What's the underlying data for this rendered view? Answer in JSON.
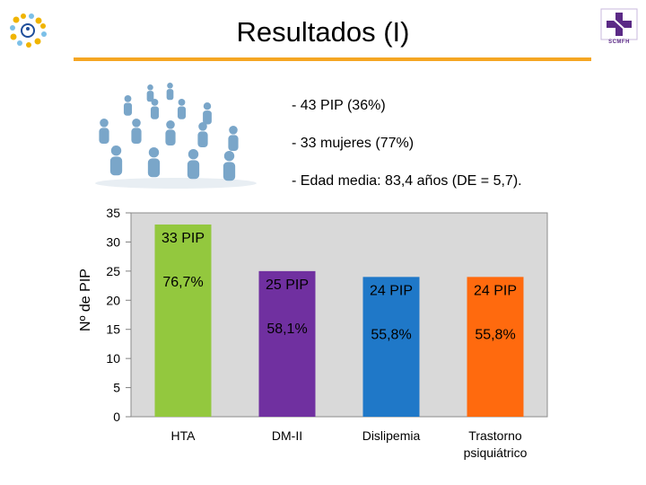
{
  "slide": {
    "title": "Resultados (I)",
    "bullets": [
      "- 43 PIP (36%)",
      "- 33 mujeres (77%)",
      "- Edad media: 83,4 años (DE = 5,7)."
    ],
    "logo_right_text": "SCMFH",
    "colors": {
      "title_rule": "#f5a623",
      "plot_bg": "#d9d9d9"
    }
  },
  "chart_data": {
    "type": "bar",
    "title": "",
    "xlabel": "",
    "ylabel": "Nº de PIP",
    "ylim": [
      0,
      35
    ],
    "yticks": [
      0,
      5,
      10,
      15,
      20,
      25,
      30,
      35
    ],
    "grid": false,
    "categories": [
      "HTA",
      "DM-II",
      "Dislipemia",
      "Trastorno psiquiátrico"
    ],
    "category_lines": [
      [
        "HTA"
      ],
      [
        "DM-II"
      ],
      [
        "Dislipemia"
      ],
      [
        "Trastorno",
        "psiquiátrico"
      ]
    ],
    "values": [
      33,
      25,
      24,
      24
    ],
    "count_labels": [
      "33 PIP",
      "25 PIP",
      "24 PIP",
      "24 PIP"
    ],
    "percent_labels": [
      "76,7%",
      "58,1%",
      "55,8%",
      "55,8%"
    ],
    "colors": [
      "#93c83e",
      "#7030a0",
      "#1f78c8",
      "#ff6a0e"
    ]
  }
}
